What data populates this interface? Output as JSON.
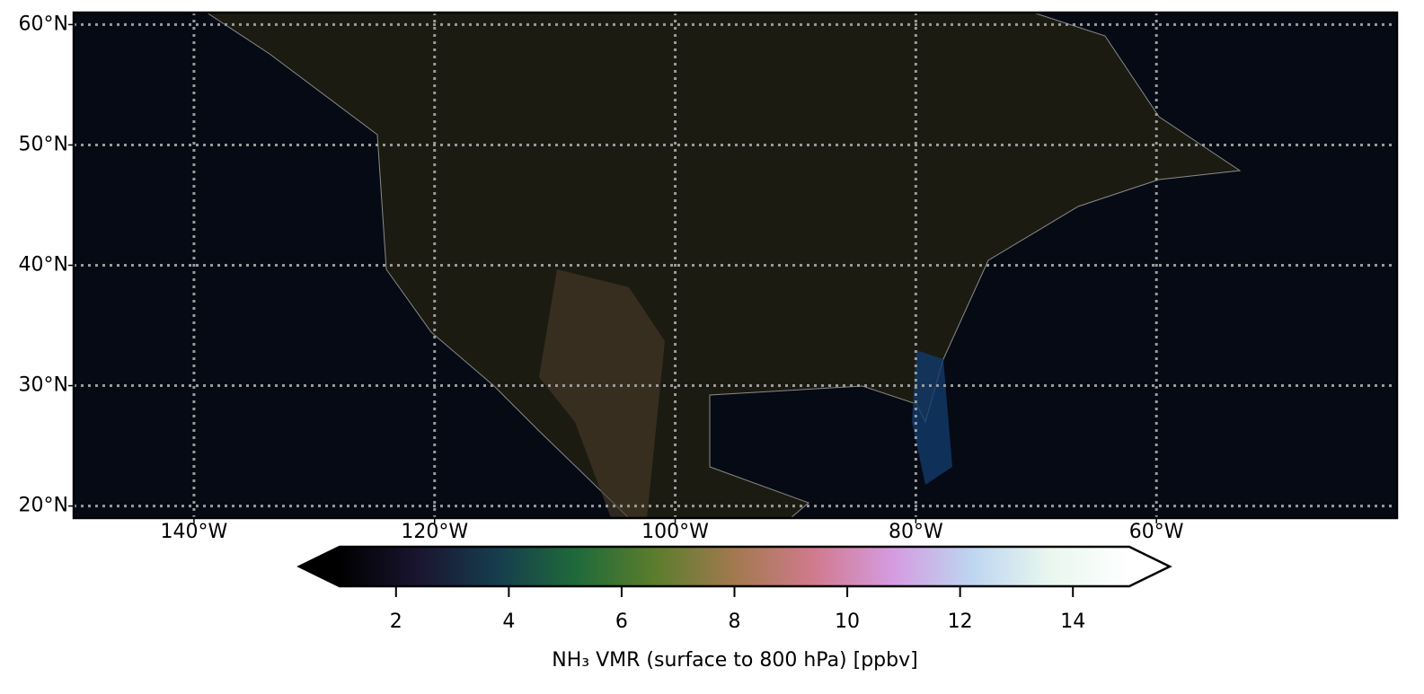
{
  "chart_data": {
    "type": "map",
    "xlim": [
      -150,
      -40
    ],
    "ylim": [
      19,
      61
    ],
    "xticks": [
      {
        "value": -140,
        "label": "140°W"
      },
      {
        "value": -120,
        "label": "120°W"
      },
      {
        "value": -100,
        "label": "100°W"
      },
      {
        "value": -80,
        "label": "80°W"
      },
      {
        "value": -60,
        "label": "60°W"
      }
    ],
    "yticks": [
      {
        "value": 20,
        "label": "20°N"
      },
      {
        "value": 30,
        "label": "30°N"
      },
      {
        "value": 40,
        "label": "40°N"
      },
      {
        "value": 50,
        "label": "50°N"
      },
      {
        "value": 60,
        "label": "60°N"
      }
    ],
    "grid": true,
    "colorbar": {
      "label": "NH₃ VMR (surface to 800 hPa) [ppbv]",
      "clim": [
        1,
        15
      ],
      "ticks": [
        2,
        4,
        6,
        8,
        10,
        12,
        14
      ],
      "extend": "both",
      "colormap": [
        "#000000",
        "#1a1530",
        "#163d4e",
        "#1f6a3a",
        "#5c7d2c",
        "#a2794f",
        "#d07a8d",
        "#d59be0",
        "#bdd5f0",
        "#e9f7ef",
        "#ffffff"
      ]
    }
  }
}
